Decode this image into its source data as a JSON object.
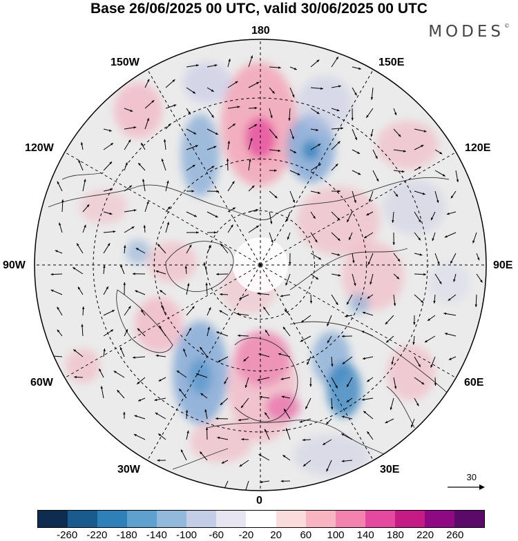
{
  "title": "Base 26/06/2025 00 UTC, valid 30/06/2025 00 UTC",
  "brand": {
    "name": "MODES",
    "mark": "©"
  },
  "longitude_labels": {
    "top": "180",
    "bottom": "0",
    "left": "90W",
    "right": "90E",
    "upper_left_2": "150W",
    "upper_left_1": "120W",
    "lower_left_1": "60W",
    "lower_left_2": "30W",
    "upper_right_2": "150E",
    "upper_right_1": "120E",
    "lower_right_1": "60E",
    "lower_right_2": "30E"
  },
  "reference_vector": {
    "label": "30",
    "icon": "arrow-right-icon"
  },
  "colorbar": {
    "colors": [
      "#0d2c4f",
      "#195b8d",
      "#2f80b8",
      "#5ea1cf",
      "#92b8dc",
      "#c4cde6",
      "#e8e5f2",
      "#ffffff",
      "#fbdcdd",
      "#f8b5c1",
      "#f382ae",
      "#e5489f",
      "#c41c84",
      "#8f0a82",
      "#5b0a6a"
    ],
    "tick_labels": [
      "-260",
      "-220",
      "-180",
      "-140",
      "-100",
      "-60",
      "-20",
      "20",
      "60",
      "100",
      "140",
      "180",
      "220",
      "260"
    ]
  },
  "anomaly_colors": {
    "positive": "#f3a9ba",
    "strong_positive": "#e75aa2",
    "negative": "#7fa6d6",
    "strong_negative": "#3b86c0",
    "neutral": "#ebebeb"
  }
}
